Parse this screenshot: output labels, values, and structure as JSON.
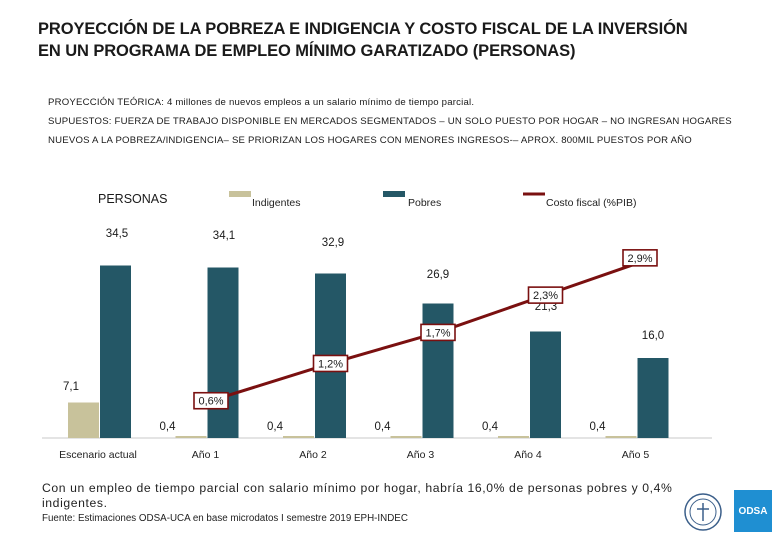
{
  "title": {
    "line1": "PROYECCIÓN DE LA POBREZA  E INDIGENCIA Y COSTO FISCAL DE LA INVERSIÓN",
    "line2": "EN UN PROGRAMA DE EMPLEO MÍNIMO GARATIZADO (PERSONAS)"
  },
  "notes": {
    "proyeccion": "PROYECCIÓN TEÓRICA: 4 millones de nuevos empleos a un salario mínimo de tiempo parcial.",
    "supuestos1": "SUPUESTOS: FUERZA DE TRABAJO DISPONIBLE EN MERCADOS SEGMENTADOS – UN SOLO PUESTO POR HOGAR – NO INGRESAN HOGARES",
    "supuestos2": "NUEVOS A LA POBREZA/INDIGENCIA– SE PRIORIZAN LOS HOGARES CON MENORES INGRESOS-– APROX. 800MIL PUESTOS POR AÑO"
  },
  "chart_data": {
    "type": "bar",
    "ylabel": "PERSONAS",
    "categories": [
      "Escenario actual",
      "Año 1",
      "Año 2",
      "Año 3",
      "Año 4",
      "Año 5"
    ],
    "series": [
      {
        "name": "Indigentes",
        "values": [
          7.1,
          0.4,
          0.4,
          0.4,
          0.4,
          0.4
        ],
        "labels": [
          "7,1",
          "0,4",
          "0,4",
          "0,4",
          "0,4",
          "0,4"
        ],
        "color": "#c8c29b"
      },
      {
        "name": "Pobres",
        "values": [
          34.5,
          34.1,
          32.9,
          26.9,
          21.3,
          16.0
        ],
        "labels": [
          "34,5",
          "34,1",
          "32,9",
          "26,9",
          "21,3",
          "16,0"
        ],
        "color": "#245766"
      },
      {
        "name": "Costo fiscal (%PIB)",
        "type": "line",
        "values": [
          null,
          0.6,
          1.2,
          1.7,
          2.3,
          2.9
        ],
        "labels": [
          "",
          "0,6%",
          "1,2%",
          "1,7%",
          "2,3%",
          "2,9%"
        ],
        "color": "#7a1010"
      }
    ],
    "ylim": [
      0,
      40
    ],
    "line_ylim": [
      0,
      3.3
    ],
    "legend_position": "top"
  },
  "footer": {
    "text": "Con un empleo de tiempo parcial con salario mínimo por hogar, habría 16,0% de personas pobres y 0,4% indigentes.",
    "source": "Fuente: Estimaciones ODSA-UCA en base microdatos I semestre 2019 EPH-INDEC",
    "logo": "ODSA"
  }
}
